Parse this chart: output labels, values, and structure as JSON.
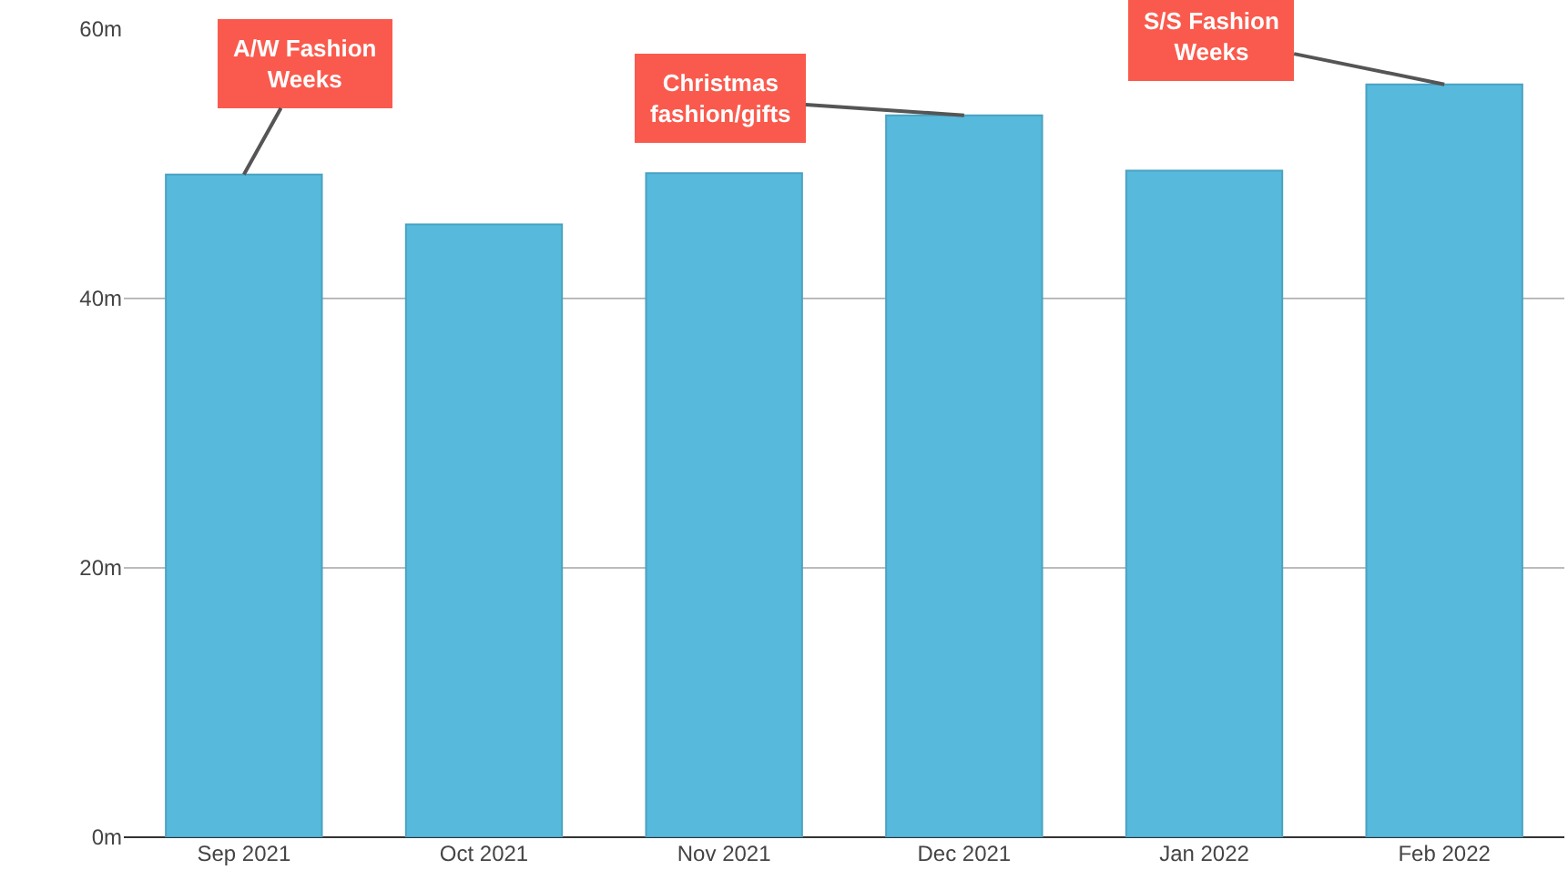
{
  "chart_data": {
    "type": "bar",
    "categories": [
      "Sep 2021",
      "Oct 2021",
      "Nov 2021",
      "Dec 2021",
      "Jan 2022",
      "Feb 2022"
    ],
    "values": [
      49.2,
      45.5,
      49.3,
      53.6,
      49.5,
      55.9
    ],
    "color": "#57b9db",
    "ylim": [
      0,
      60
    ],
    "yticks": [
      {
        "value": 0,
        "label": "0m"
      },
      {
        "value": 20,
        "label": "20m"
      },
      {
        "value": 40,
        "label": "40m"
      },
      {
        "value": 60,
        "label": "60m"
      }
    ],
    "grid": "y",
    "annotations": [
      {
        "text": "A/W Fashion\nWeeks",
        "x": "Sep 2021",
        "y": 49.2
      },
      {
        "text": "Christmas\nfashion/gifts",
        "x": "Dec 2021",
        "y": 53.6
      },
      {
        "text": "S/S Fashion\nWeeks",
        "x": "Feb 2022",
        "y": 55.9
      }
    ]
  }
}
